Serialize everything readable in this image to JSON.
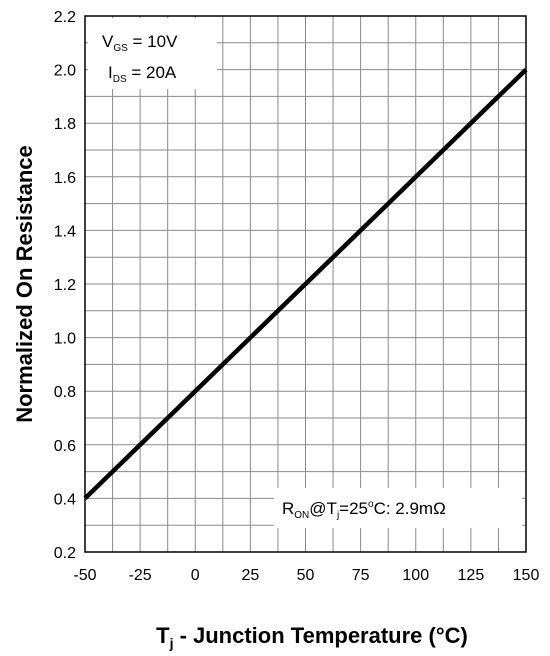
{
  "chart_data": {
    "type": "line",
    "xlabel_main": "T",
    "xlabel_sub": "j",
    "xlabel_rest": " - Junction Temperature (°C)",
    "ylabel": "Normalized On Resistance",
    "xlim": [
      -50,
      150
    ],
    "ylim": [
      0.2,
      2.2
    ],
    "x_ticks": [
      -50,
      -25,
      0,
      25,
      50,
      75,
      100,
      125,
      150
    ],
    "y_ticks": [
      "0.2",
      "0.4",
      "0.6",
      "0.8",
      "1.0",
      "1.2",
      "1.4",
      "1.6",
      "1.8",
      "2.0",
      "2.2"
    ],
    "y_tick_values": [
      0.2,
      0.4,
      0.6,
      0.8,
      1.0,
      1.2,
      1.4,
      1.6,
      1.8,
      2.0,
      2.2
    ],
    "x_minor_step": 12.5,
    "y_minor_step": 0.1,
    "grid": true,
    "series": [
      {
        "x": [
          -50,
          150
        ],
        "y": [
          0.4,
          2.0
        ],
        "color": "#000000"
      }
    ],
    "conditions": {
      "vgs_main": "V",
      "vgs_sub": "GS",
      "vgs_rest": " = 10V",
      "ids_main": "I",
      "ids_sub": "DS",
      "ids_rest": " = 20A"
    },
    "ron_note": {
      "r_main": "R",
      "r_sub": "ON",
      "at": "@T",
      "tj_sub": "j",
      "tj_rest": "=25",
      "deg": "o",
      "rest": "C: 2.9mΩ"
    }
  }
}
